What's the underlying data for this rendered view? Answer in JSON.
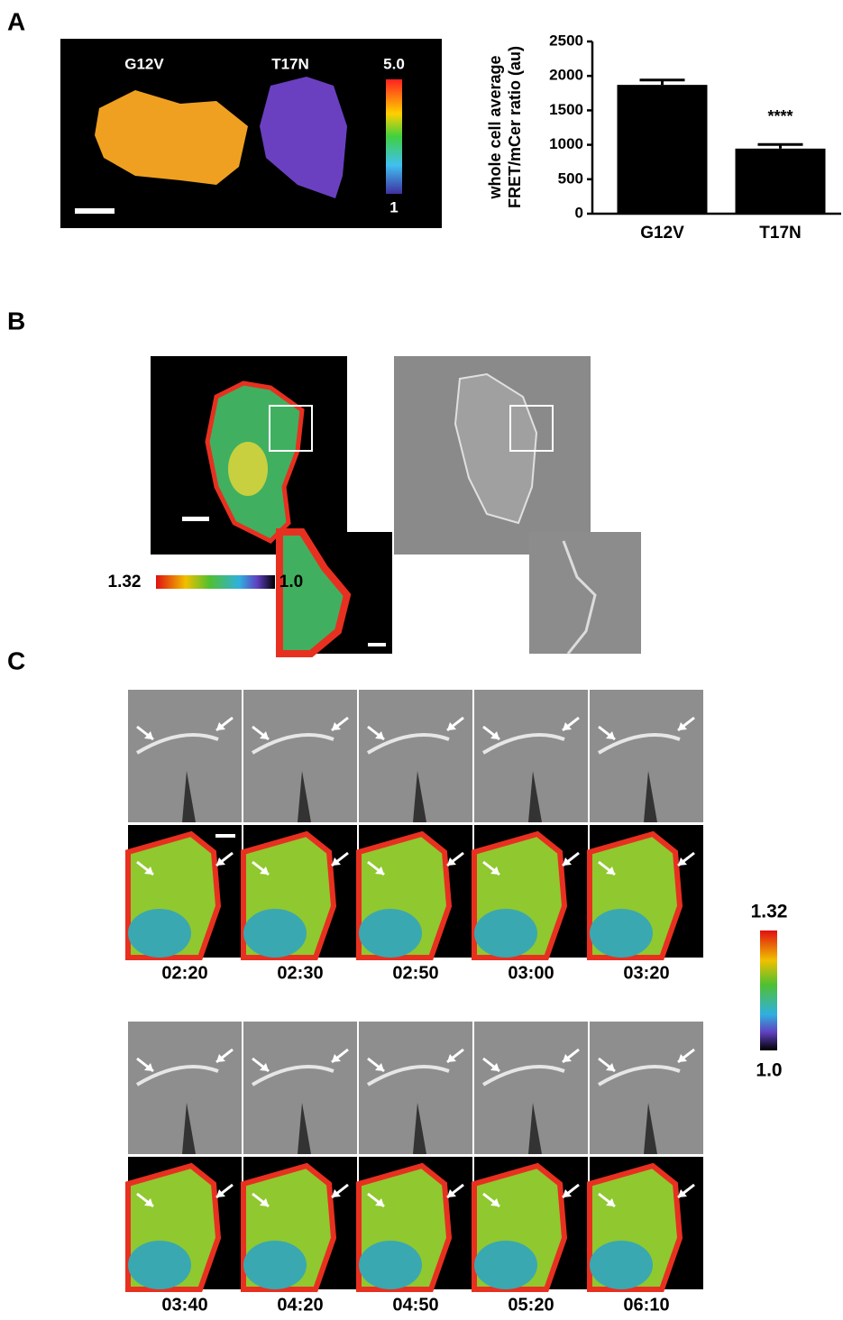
{
  "panels": {
    "a": "A",
    "b": "B",
    "c": "C"
  },
  "panel_a_image": {
    "labels": [
      "G12V",
      "T17N"
    ],
    "colorbar": {
      "max": "5.0",
      "min": "1"
    }
  },
  "chart_data": {
    "type": "bar",
    "y_label": [
      "whole cell average",
      "FRET/mCer ratio (au)"
    ],
    "categories": [
      "G12V",
      "T17N"
    ],
    "values": [
      1870,
      945
    ],
    "errors": [
      70,
      60
    ],
    "annotations": [
      null,
      "****"
    ],
    "color": "#000000",
    "ylim": [
      0,
      2500
    ],
    "yticks": [
      0,
      500,
      1000,
      1500,
      2000,
      2500
    ]
  },
  "panel_b": {
    "colorbar": {
      "max": "1.32",
      "min": "1.0"
    }
  },
  "panel_c": {
    "times": [
      "02:20",
      "02:30",
      "02:50",
      "03:00",
      "03:20",
      "03:40",
      "04:20",
      "04:50",
      "05:20",
      "06:10"
    ],
    "colorbar": {
      "max": "1.32",
      "min": "1.0"
    }
  }
}
